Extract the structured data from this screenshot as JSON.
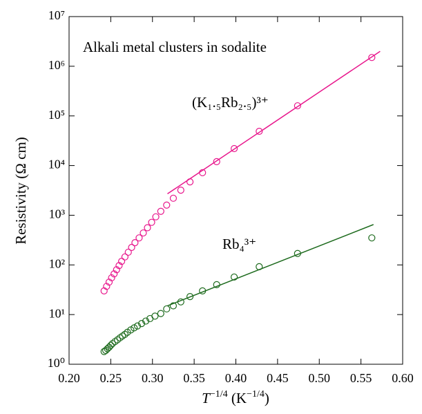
{
  "chart_data": {
    "type": "scatter",
    "title": "Alkali metal clusters in sodalite",
    "ylabel": "Resistivity (Ω cm)",
    "xlabel_parts": [
      {
        "text": "T",
        "italic": true
      },
      {
        "text": "−1/4",
        "sup": true
      },
      {
        "text": " (K"
      },
      {
        "text": "−1/4",
        "sup": true
      },
      {
        "text": ")"
      }
    ],
    "xlim": [
      0.2,
      0.6
    ],
    "ylim": [
      1,
      10000000
    ],
    "log_y": true,
    "xticks": [
      {
        "value": 0.2,
        "label": "0.20"
      },
      {
        "value": 0.25,
        "label": "0.25"
      },
      {
        "value": 0.3,
        "label": "0.30"
      },
      {
        "value": 0.35,
        "label": "0.35"
      },
      {
        "value": 0.4,
        "label": "0.40"
      },
      {
        "value": 0.45,
        "label": "0.45"
      },
      {
        "value": 0.5,
        "label": "0.50"
      },
      {
        "value": 0.55,
        "label": "0.55"
      },
      {
        "value": 0.6,
        "label": "0.60"
      }
    ],
    "yticks": [
      {
        "value": 1,
        "label": "10⁰"
      },
      {
        "value": 10,
        "label": "10¹"
      },
      {
        "value": 100,
        "label": "10²"
      },
      {
        "value": 1000,
        "label": "10³"
      },
      {
        "value": 10000,
        "label": "10⁴"
      },
      {
        "value": 100000,
        "label": "10⁵"
      },
      {
        "value": 1000000,
        "label": "10⁶"
      },
      {
        "value": 10000000,
        "label": "10⁷"
      }
    ],
    "series": [
      {
        "name": "(K₁.₅Rb₂.₅)³⁺",
        "color": "#e8168c",
        "x": [
          0.242,
          0.245,
          0.248,
          0.251,
          0.254,
          0.257,
          0.26,
          0.263,
          0.267,
          0.271,
          0.275,
          0.279,
          0.284,
          0.289,
          0.294,
          0.299,
          0.304,
          0.31,
          0.317,
          0.325,
          0.334,
          0.345,
          0.36,
          0.377,
          0.398,
          0.428,
          0.474,
          0.563
        ],
        "values": [
          30,
          37,
          45,
          55,
          66,
          80,
          97,
          118,
          145,
          180,
          225,
          280,
          350,
          440,
          560,
          720,
          930,
          1200,
          1600,
          2200,
          3200,
          4700,
          7200,
          12000,
          22000,
          49000,
          160000,
          1500000
        ],
        "fit": {
          "x": [
            0.318,
            0.573
          ],
          "values": [
            2700,
            2000000
          ]
        }
      },
      {
        "name": "Rb₄³⁺",
        "color": "#1e6b1e",
        "x": [
          0.242,
          0.244,
          0.246,
          0.248,
          0.25,
          0.252,
          0.255,
          0.258,
          0.261,
          0.264,
          0.267,
          0.27,
          0.274,
          0.278,
          0.282,
          0.287,
          0.292,
          0.297,
          0.303,
          0.31,
          0.317,
          0.325,
          0.334,
          0.345,
          0.36,
          0.377,
          0.398,
          0.428,
          0.474,
          0.563
        ],
        "values": [
          1.8,
          1.9,
          2.05,
          2.2,
          2.4,
          2.6,
          2.85,
          3.1,
          3.4,
          3.7,
          4.0,
          4.4,
          4.9,
          5.4,
          5.9,
          6.6,
          7.4,
          8.3,
          9.3,
          10.5,
          13,
          15,
          18,
          23,
          30,
          40,
          57,
          92,
          170,
          350
        ],
        "fit": {
          "x": [
            0.318,
            0.565
          ],
          "values": [
            15,
            650
          ]
        }
      }
    ]
  }
}
